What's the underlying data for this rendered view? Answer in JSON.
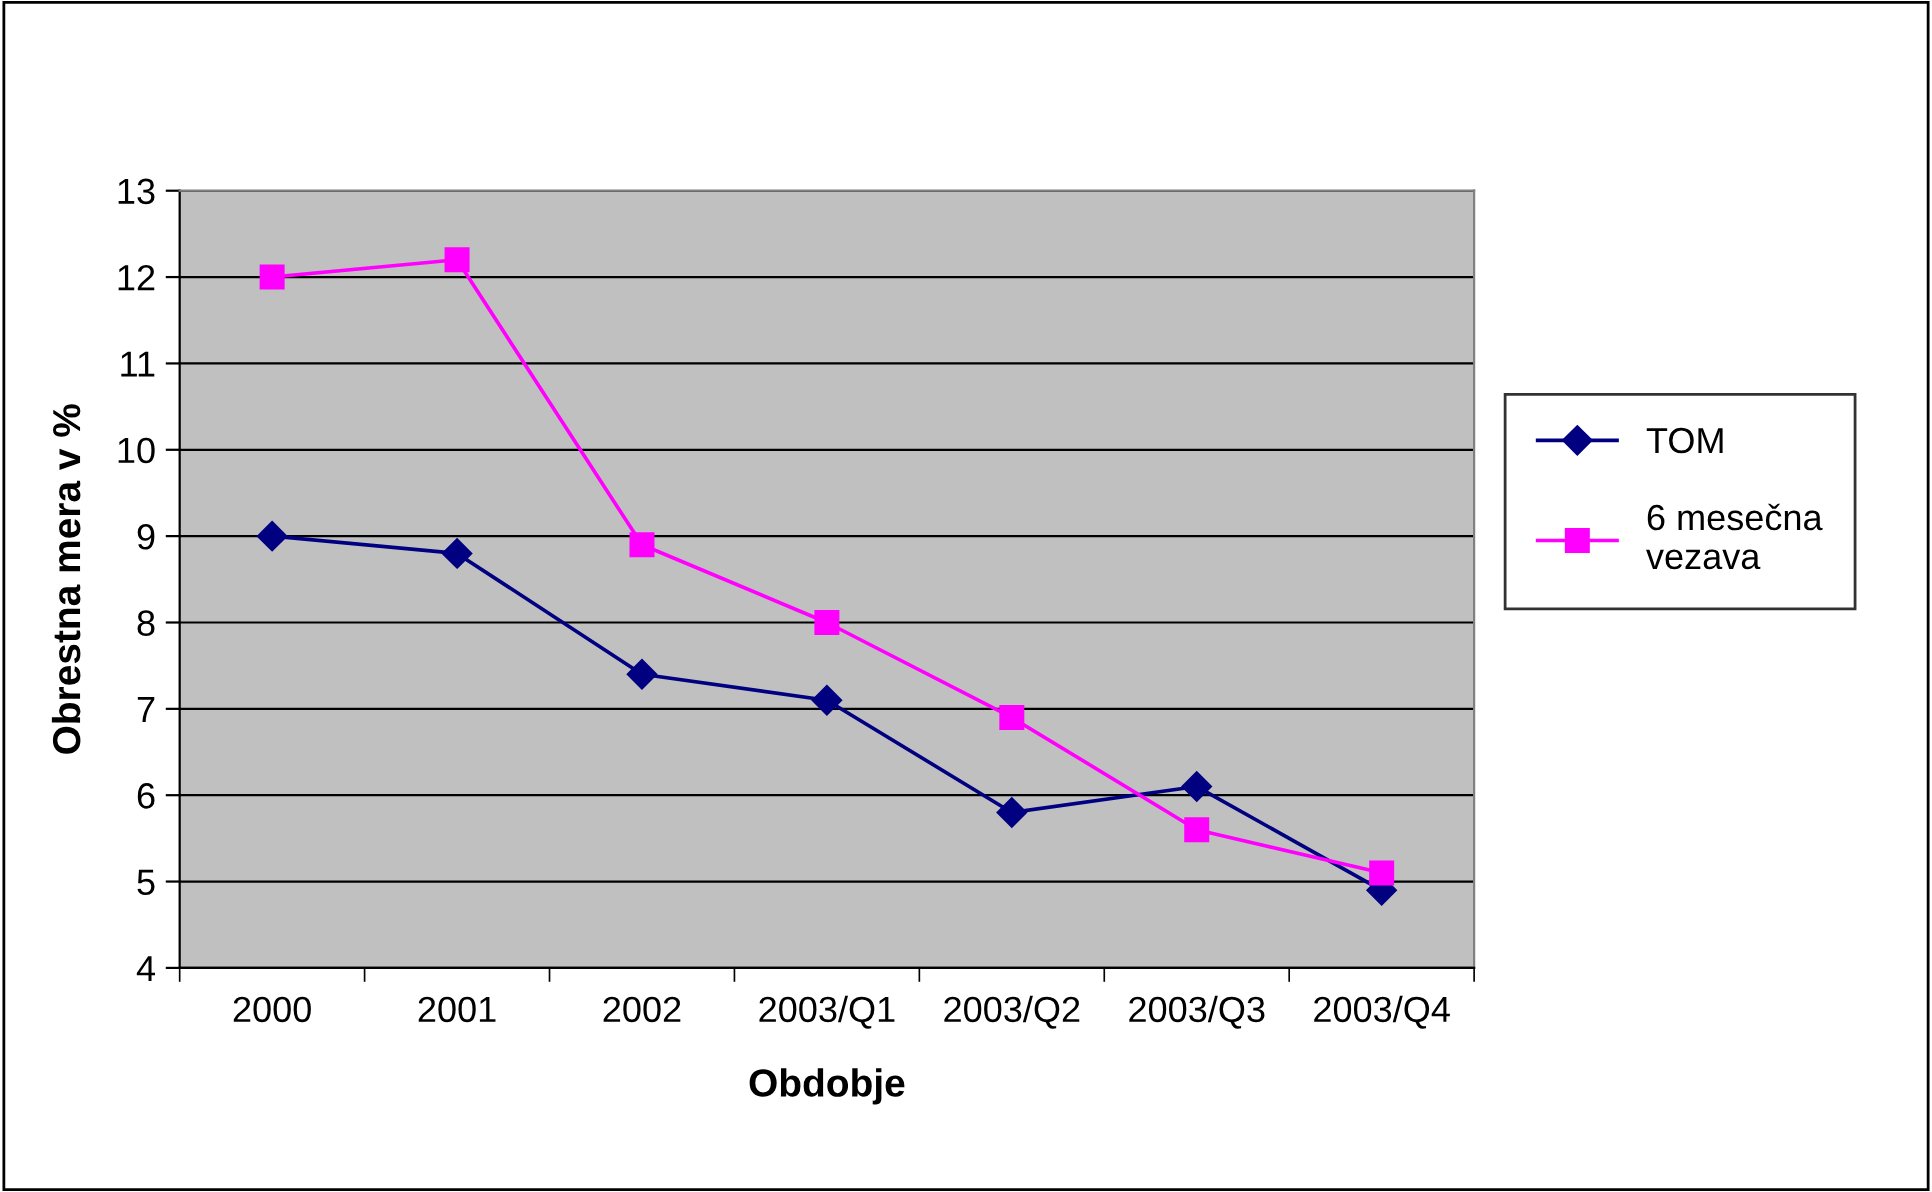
{
  "chart_data": {
    "type": "line",
    "xlabel": "Obdobje",
    "ylabel": "Obrestna mera v %",
    "categories": [
      "2000",
      "2001",
      "2002",
      "2003/Q1",
      "2003/Q2",
      "2003/Q3",
      "2003/Q4"
    ],
    "series": [
      {
        "name": "TOM",
        "color": "#000080",
        "marker": "diamond",
        "values": [
          9.0,
          8.8,
          7.4,
          7.1,
          5.8,
          6.1,
          4.9
        ]
      },
      {
        "name": "6 mesečna vezava",
        "color": "#ff00ff",
        "marker": "square",
        "values": [
          12.0,
          12.2,
          8.9,
          8.0,
          6.9,
          5.6,
          5.1
        ]
      }
    ],
    "ylim": [
      4,
      13
    ],
    "yticks": [
      4,
      5,
      6,
      7,
      8,
      9,
      10,
      11,
      12,
      13
    ],
    "grid": "y",
    "legend": "right"
  }
}
